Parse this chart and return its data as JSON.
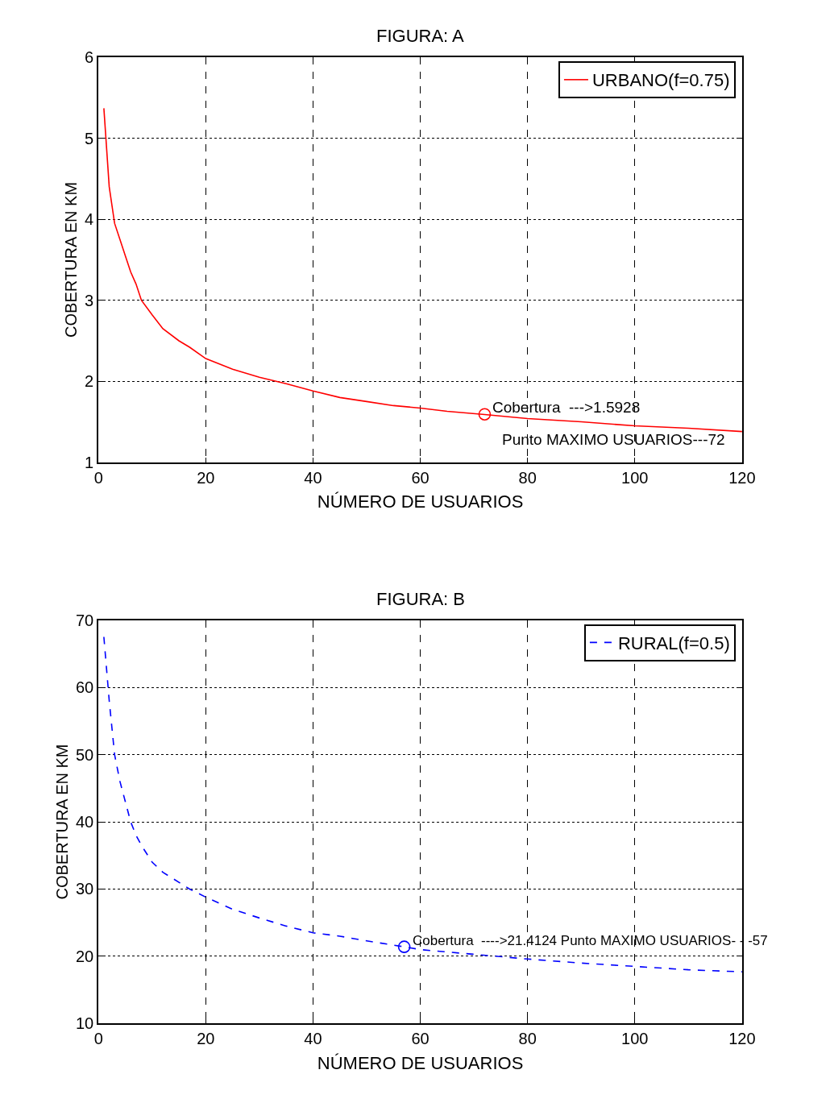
{
  "chart_data": [
    {
      "type": "line",
      "title": "FIGURA: A",
      "xlabel": "NÚMERO DE USUARIOS",
      "ylabel": "COBERTURA EN KM",
      "xlim": [
        0,
        120
      ],
      "xticks": [
        0,
        20,
        40,
        60,
        80,
        100,
        120
      ],
      "ylim": [
        1,
        6
      ],
      "yticks": [
        1,
        2,
        3,
        4,
        5,
        6
      ],
      "grid": true,
      "legend": "top right",
      "series": [
        {
          "name": "URBANO(f=0.75)",
          "color": "#ff0000",
          "line_style": "solid",
          "marker": "none",
          "x": [
            1,
            2,
            3,
            4,
            5,
            6,
            7,
            8,
            10,
            12,
            15,
            17,
            20,
            25,
            30,
            35,
            40,
            45,
            50,
            55,
            60,
            65,
            72,
            80,
            90,
            100,
            110,
            120
          ],
          "values": [
            5.37,
            4.4,
            3.95,
            3.75,
            3.55,
            3.35,
            3.2,
            3.0,
            2.82,
            2.65,
            2.5,
            2.42,
            2.28,
            2.15,
            2.05,
            1.97,
            1.88,
            1.8,
            1.75,
            1.7,
            1.67,
            1.63,
            1.59,
            1.54,
            1.5,
            1.45,
            1.42,
            1.38
          ]
        },
        {
          "type": "scatter",
          "color": "#ff0000",
          "marker": "circle",
          "x": [
            72
          ],
          "values": [
            1.5928
          ]
        }
      ],
      "annotations": [
        "Cobertura  --->1.5928",
        "Punto MAXIMO USUARIOS---72"
      ]
    },
    {
      "type": "line",
      "title": "FIGURA: B",
      "xlabel": "NÚMERO DE USUARIOS",
      "ylabel": "COBERTURA EN KM",
      "xlim": [
        0,
        120
      ],
      "xticks": [
        0,
        20,
        40,
        60,
        80,
        100,
        120
      ],
      "ylim": [
        10,
        70
      ],
      "yticks": [
        10,
        20,
        30,
        40,
        50,
        60,
        70
      ],
      "grid": true,
      "legend": "top right",
      "series": [
        {
          "name": "RURAL(f=0.5)",
          "color": "#0000ff",
          "line_style": "dashed",
          "marker": "none",
          "x": [
            1,
            2,
            3,
            4,
            5,
            6,
            7,
            8,
            10,
            12,
            15,
            17,
            20,
            25,
            30,
            35,
            40,
            45,
            50,
            57,
            60,
            70,
            80,
            90,
            100,
            110,
            120
          ],
          "values": [
            67.5,
            58,
            50,
            46,
            43,
            40,
            38,
            36.5,
            34,
            32.5,
            31,
            30,
            28.8,
            27,
            25.7,
            24.5,
            23.5,
            23,
            22.3,
            21.4124,
            21,
            20.3,
            19.6,
            19,
            18.5,
            18,
            17.7
          ]
        },
        {
          "type": "scatter",
          "color": "#0000ff",
          "marker": "circle",
          "x": [
            57
          ],
          "values": [
            21.4124
          ]
        }
      ],
      "annotations": [
        "Cobertura  ---->21.4124 Punto MAXIMO USUARIOS- - -57"
      ]
    }
  ]
}
